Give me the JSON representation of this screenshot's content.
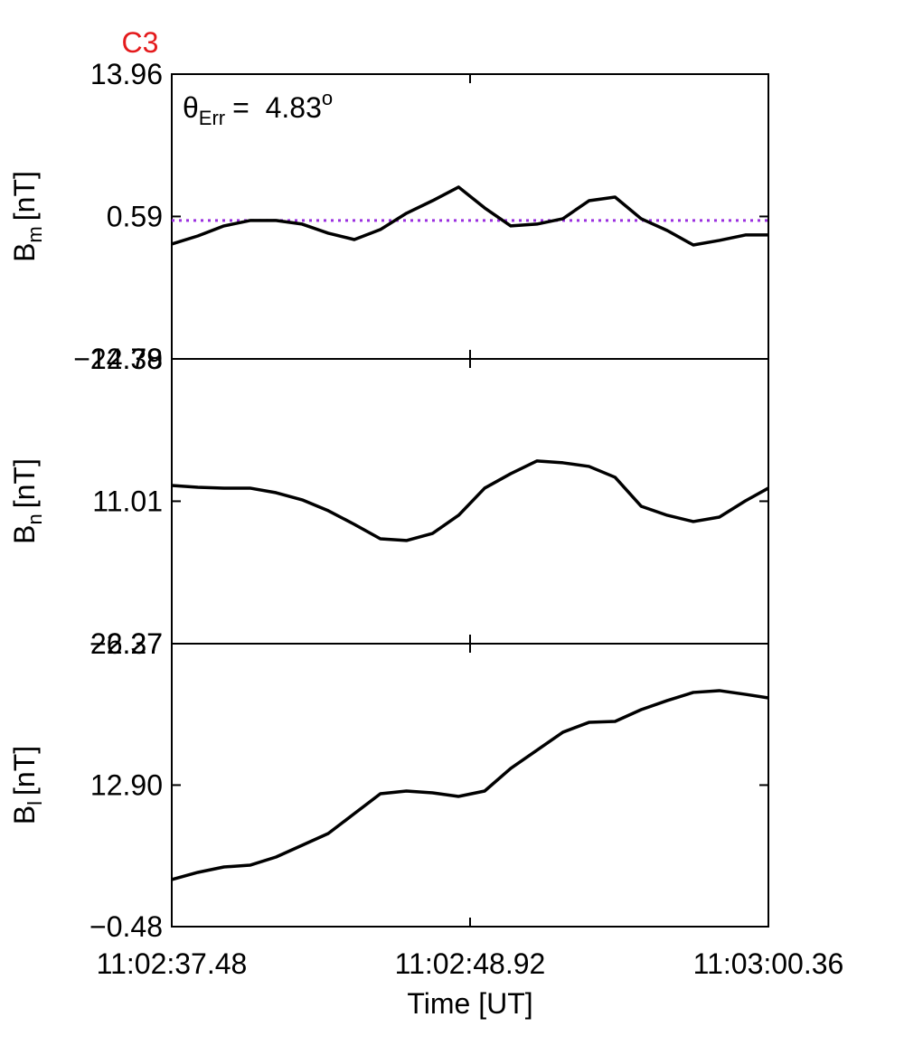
{
  "chart_data": [
    {
      "type": "line",
      "title": "C3",
      "title_color": "#e41a1c",
      "annotation": {
        "symbol": "θ",
        "subscript": "Err",
        "text": "=  4.83",
        "superscript": "o"
      },
      "ylabel": {
        "text": "B",
        "subscript": "m",
        "unit": "[nT]"
      },
      "xlim": [
        "11:02:37.48",
        "11:03:00.36"
      ],
      "ylim": [
        -12.79,
        13.96
      ],
      "yticks": [
        {
          "value": -12.79,
          "label": "−12.79"
        },
        0.59,
        13.96
      ],
      "reference_line": {
        "value": 0.21,
        "color": "#9b30e0"
      },
      "x": [
        "11:02:37.48",
        "11:02:38.48",
        "11:02:39.48",
        "11:02:40.48",
        "11:02:41.48",
        "11:02:42.48",
        "11:02:43.48",
        "11:02:44.48",
        "11:02:45.48",
        "11:02:46.48",
        "11:02:47.48",
        "11:02:48.48",
        "11:02:49.48",
        "11:02:50.48",
        "11:02:51.48",
        "11:02:52.48",
        "11:02:53.48",
        "11:02:54.48",
        "11:02:55.48",
        "11:02:56.48",
        "11:02:57.48",
        "11:02:58.48",
        "11:02:59.48",
        "11:03:00.36"
      ],
      "series": [
        {
          "color": "#000000",
          "values": [
            -2.0,
            -1.24,
            -0.3,
            0.21,
            0.21,
            -0.13,
            -0.98,
            -1.58,
            -0.64,
            0.89,
            2.07,
            3.35,
            1.39,
            -0.3,
            -0.13,
            0.38,
            2.07,
            2.41,
            0.38,
            -0.73,
            -2.09,
            -1.66,
            -1.15,
            -1.15
          ]
        }
      ]
    },
    {
      "type": "line",
      "ylabel": {
        "text": "B",
        "subscript": "n",
        "unit": "[nT]"
      },
      "xlim": [
        "11:02:37.48",
        "11:03:00.36"
      ],
      "ylim": [
        -2.37,
        24.38
      ],
      "yticks": [
        {
          "value": -2.37,
          "label": "−2.37"
        },
        11.01,
        24.38
      ],
      "x": [
        "11:02:37.48",
        "11:02:38.48",
        "11:02:39.48",
        "11:02:40.48",
        "11:02:41.48",
        "11:02:42.48",
        "11:02:43.48",
        "11:02:44.48",
        "11:02:45.48",
        "11:02:46.48",
        "11:02:47.48",
        "11:02:48.48",
        "11:02:49.48",
        "11:02:50.48",
        "11:02:51.48",
        "11:02:52.48",
        "11:02:53.48",
        "11:02:54.48",
        "11:02:55.48",
        "11:02:56.48",
        "11:02:57.48",
        "11:02:58.48",
        "11:02:59.48",
        "11:03:00.36"
      ],
      "series": [
        {
          "color": "#000000",
          "values": [
            12.49,
            12.32,
            12.24,
            12.24,
            11.81,
            11.14,
            10.12,
            8.84,
            7.48,
            7.32,
            7.99,
            9.69,
            12.24,
            13.6,
            14.79,
            14.62,
            14.28,
            13.26,
            10.54,
            9.69,
            9.1,
            9.52,
            11.05,
            12.24
          ]
        }
      ]
    },
    {
      "type": "line",
      "ylabel": {
        "text": "B",
        "subscript": "l",
        "unit": "[nT]"
      },
      "xlabel": "Time [UT]",
      "xlim": [
        "11:02:37.48",
        "11:03:00.36"
      ],
      "xticks": [
        "11:02:37.48",
        "11:02:48.92",
        "11:03:00.36"
      ],
      "ylim": [
        -0.48,
        26.27
      ],
      "yticks": [
        {
          "value": -0.48,
          "label": "−0.48"
        },
        {
          "value": 12.9,
          "label": "12.90"
        },
        26.27
      ],
      "x": [
        "11:02:37.48",
        "11:02:38.48",
        "11:02:39.48",
        "11:02:40.48",
        "11:02:41.48",
        "11:02:42.48",
        "11:02:43.48",
        "11:02:44.48",
        "11:02:45.48",
        "11:02:46.48",
        "11:02:47.48",
        "11:02:48.48",
        "11:02:49.48",
        "11:02:50.48",
        "11:02:51.48",
        "11:02:52.48",
        "11:02:53.48",
        "11:02:54.48",
        "11:02:55.48",
        "11:02:56.48",
        "11:02:57.48",
        "11:02:58.48",
        "11:02:59.48",
        "11:03:00.36"
      ],
      "series": [
        {
          "color": "#000000",
          "values": [
            3.97,
            4.65,
            5.16,
            5.33,
            6.1,
            7.21,
            8.32,
            10.2,
            12.08,
            12.34,
            12.17,
            11.83,
            12.34,
            14.48,
            16.19,
            17.9,
            18.83,
            18.92,
            20.03,
            20.89,
            21.66,
            21.83,
            21.48,
            21.14
          ]
        }
      ]
    }
  ]
}
